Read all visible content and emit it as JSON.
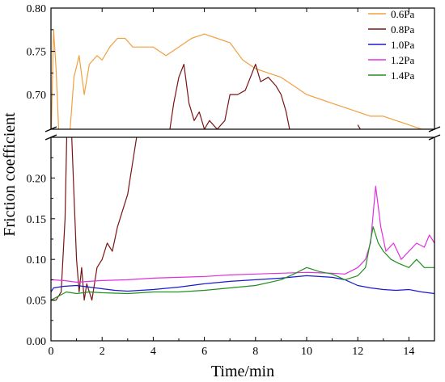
{
  "chart_data": {
    "type": "line",
    "xlabel": "Time/min",
    "ylabel": "Friction coefficient",
    "xlim": [
      0,
      15
    ],
    "ylim_lower": [
      0,
      0.25
    ],
    "ylim_upper": [
      0.66,
      0.8
    ],
    "broken_y_axis": true,
    "grid": false,
    "legend_position": "top-right",
    "x_ticks": [
      "0",
      "2",
      "4",
      "6",
      "8",
      "10",
      "12",
      "14"
    ],
    "y_ticks_lower": [
      "0.00",
      "0.05",
      "0.10",
      "0.15",
      "0.20"
    ],
    "y_ticks_upper": [
      "0.70",
      "0.75",
      "0.80"
    ],
    "series": [
      {
        "name": "0.6Pa",
        "color": "#f0a040",
        "points": [
          [
            0.0,
            0.64
          ],
          [
            0.1,
            0.775
          ],
          [
            0.2,
            0.73
          ],
          [
            0.3,
            0.66
          ],
          [
            0.5,
            0.6
          ],
          [
            0.7,
            0.64
          ],
          [
            0.9,
            0.72
          ],
          [
            1.1,
            0.745
          ],
          [
            1.3,
            0.7
          ],
          [
            1.5,
            0.735
          ],
          [
            1.8,
            0.745
          ],
          [
            2.0,
            0.74
          ],
          [
            2.3,
            0.755
          ],
          [
            2.6,
            0.765
          ],
          [
            2.9,
            0.765
          ],
          [
            3.2,
            0.755
          ],
          [
            3.5,
            0.755
          ],
          [
            4.0,
            0.755
          ],
          [
            4.5,
            0.745
          ],
          [
            5.0,
            0.755
          ],
          [
            5.5,
            0.765
          ],
          [
            6.0,
            0.77
          ],
          [
            6.5,
            0.765
          ],
          [
            7.0,
            0.76
          ],
          [
            7.5,
            0.74
          ],
          [
            8.0,
            0.73
          ],
          [
            8.5,
            0.725
          ],
          [
            9.0,
            0.72
          ],
          [
            9.5,
            0.71
          ],
          [
            10.0,
            0.7
          ],
          [
            10.5,
            0.695
          ],
          [
            11.0,
            0.69
          ],
          [
            11.5,
            0.685
          ],
          [
            12.0,
            0.68
          ],
          [
            12.5,
            0.675
          ],
          [
            13.0,
            0.675
          ],
          [
            13.5,
            0.67
          ],
          [
            14.0,
            0.665
          ],
          [
            14.5,
            0.66
          ],
          [
            15.0,
            0.66
          ]
        ]
      },
      {
        "name": "0.8Pa",
        "color": "#7a1414",
        "points": [
          [
            0.0,
            0.05
          ],
          [
            0.2,
            0.05
          ],
          [
            0.4,
            0.06
          ],
          [
            0.55,
            0.15
          ],
          [
            0.65,
            0.3
          ],
          [
            0.8,
            0.26
          ],
          [
            0.9,
            0.18
          ],
          [
            1.0,
            0.1
          ],
          [
            1.1,
            0.06
          ],
          [
            1.2,
            0.09
          ],
          [
            1.3,
            0.05
          ],
          [
            1.4,
            0.07
          ],
          [
            1.6,
            0.05
          ],
          [
            1.8,
            0.09
          ],
          [
            2.0,
            0.1
          ],
          [
            2.2,
            0.12
          ],
          [
            2.4,
            0.11
          ],
          [
            2.6,
            0.14
          ],
          [
            2.8,
            0.16
          ],
          [
            3.0,
            0.18
          ],
          [
            3.2,
            0.22
          ],
          [
            3.4,
            0.26
          ],
          [
            4.6,
            0.65
          ],
          [
            4.8,
            0.69
          ],
          [
            5.0,
            0.72
          ],
          [
            5.2,
            0.735
          ],
          [
            5.4,
            0.69
          ],
          [
            5.6,
            0.67
          ],
          [
            5.8,
            0.68
          ],
          [
            6.0,
            0.66
          ],
          [
            6.2,
            0.67
          ],
          [
            6.5,
            0.66
          ],
          [
            6.8,
            0.67
          ],
          [
            7.0,
            0.7
          ],
          [
            7.3,
            0.7
          ],
          [
            7.6,
            0.705
          ],
          [
            8.0,
            0.735
          ],
          [
            8.2,
            0.715
          ],
          [
            8.5,
            0.72
          ],
          [
            8.8,
            0.71
          ],
          [
            9.0,
            0.7
          ],
          [
            9.2,
            0.68
          ],
          [
            9.4,
            0.65
          ],
          [
            12.0,
            0.665
          ],
          [
            12.1,
            0.66
          ]
        ]
      },
      {
        "name": "1.0Pa",
        "color": "#1a1ad0",
        "points": [
          [
            0.0,
            0.06
          ],
          [
            0.1,
            0.065
          ],
          [
            0.5,
            0.067
          ],
          [
            1.0,
            0.068
          ],
          [
            1.5,
            0.066
          ],
          [
            2.0,
            0.064
          ],
          [
            2.5,
            0.062
          ],
          [
            3.0,
            0.061
          ],
          [
            4.0,
            0.063
          ],
          [
            5.0,
            0.066
          ],
          [
            6.0,
            0.07
          ],
          [
            7.0,
            0.073
          ],
          [
            8.0,
            0.075
          ],
          [
            9.0,
            0.077
          ],
          [
            10.0,
            0.08
          ],
          [
            11.0,
            0.078
          ],
          [
            11.5,
            0.075
          ],
          [
            12.0,
            0.068
          ],
          [
            12.5,
            0.065
          ],
          [
            13.0,
            0.063
          ],
          [
            13.5,
            0.062
          ],
          [
            14.0,
            0.063
          ],
          [
            14.5,
            0.06
          ],
          [
            15.0,
            0.058
          ]
        ]
      },
      {
        "name": "1.2Pa",
        "color": "#e030e0",
        "points": [
          [
            0.0,
            0.075
          ],
          [
            0.5,
            0.074
          ],
          [
            1.0,
            0.072
          ],
          [
            1.5,
            0.073
          ],
          [
            2.0,
            0.074
          ],
          [
            3.0,
            0.075
          ],
          [
            4.0,
            0.077
          ],
          [
            5.0,
            0.078
          ],
          [
            6.0,
            0.079
          ],
          [
            7.0,
            0.081
          ],
          [
            8.0,
            0.082
          ],
          [
            9.0,
            0.083
          ],
          [
            10.0,
            0.084
          ],
          [
            11.0,
            0.083
          ],
          [
            11.5,
            0.082
          ],
          [
            12.0,
            0.09
          ],
          [
            12.3,
            0.1
          ],
          [
            12.5,
            0.12
          ],
          [
            12.7,
            0.19
          ],
          [
            12.9,
            0.14
          ],
          [
            13.1,
            0.11
          ],
          [
            13.4,
            0.12
          ],
          [
            13.7,
            0.1
          ],
          [
            14.0,
            0.11
          ],
          [
            14.3,
            0.12
          ],
          [
            14.6,
            0.115
          ],
          [
            14.8,
            0.13
          ],
          [
            15.0,
            0.12
          ]
        ]
      },
      {
        "name": "1.4Pa",
        "color": "#20901e",
        "points": [
          [
            0.0,
            0.05
          ],
          [
            0.3,
            0.055
          ],
          [
            0.6,
            0.06
          ],
          [
            1.0,
            0.058
          ],
          [
            1.5,
            0.06
          ],
          [
            2.0,
            0.059
          ],
          [
            3.0,
            0.058
          ],
          [
            4.0,
            0.06
          ],
          [
            5.0,
            0.06
          ],
          [
            6.0,
            0.062
          ],
          [
            7.0,
            0.065
          ],
          [
            8.0,
            0.068
          ],
          [
            9.0,
            0.075
          ],
          [
            9.5,
            0.082
          ],
          [
            10.0,
            0.09
          ],
          [
            10.5,
            0.085
          ],
          [
            11.0,
            0.082
          ],
          [
            11.5,
            0.075
          ],
          [
            12.0,
            0.08
          ],
          [
            12.3,
            0.09
          ],
          [
            12.6,
            0.14
          ],
          [
            12.8,
            0.12
          ],
          [
            13.0,
            0.11
          ],
          [
            13.3,
            0.1
          ],
          [
            13.6,
            0.095
          ],
          [
            14.0,
            0.09
          ],
          [
            14.3,
            0.1
          ],
          [
            14.6,
            0.09
          ],
          [
            15.0,
            0.09
          ]
        ]
      }
    ]
  }
}
